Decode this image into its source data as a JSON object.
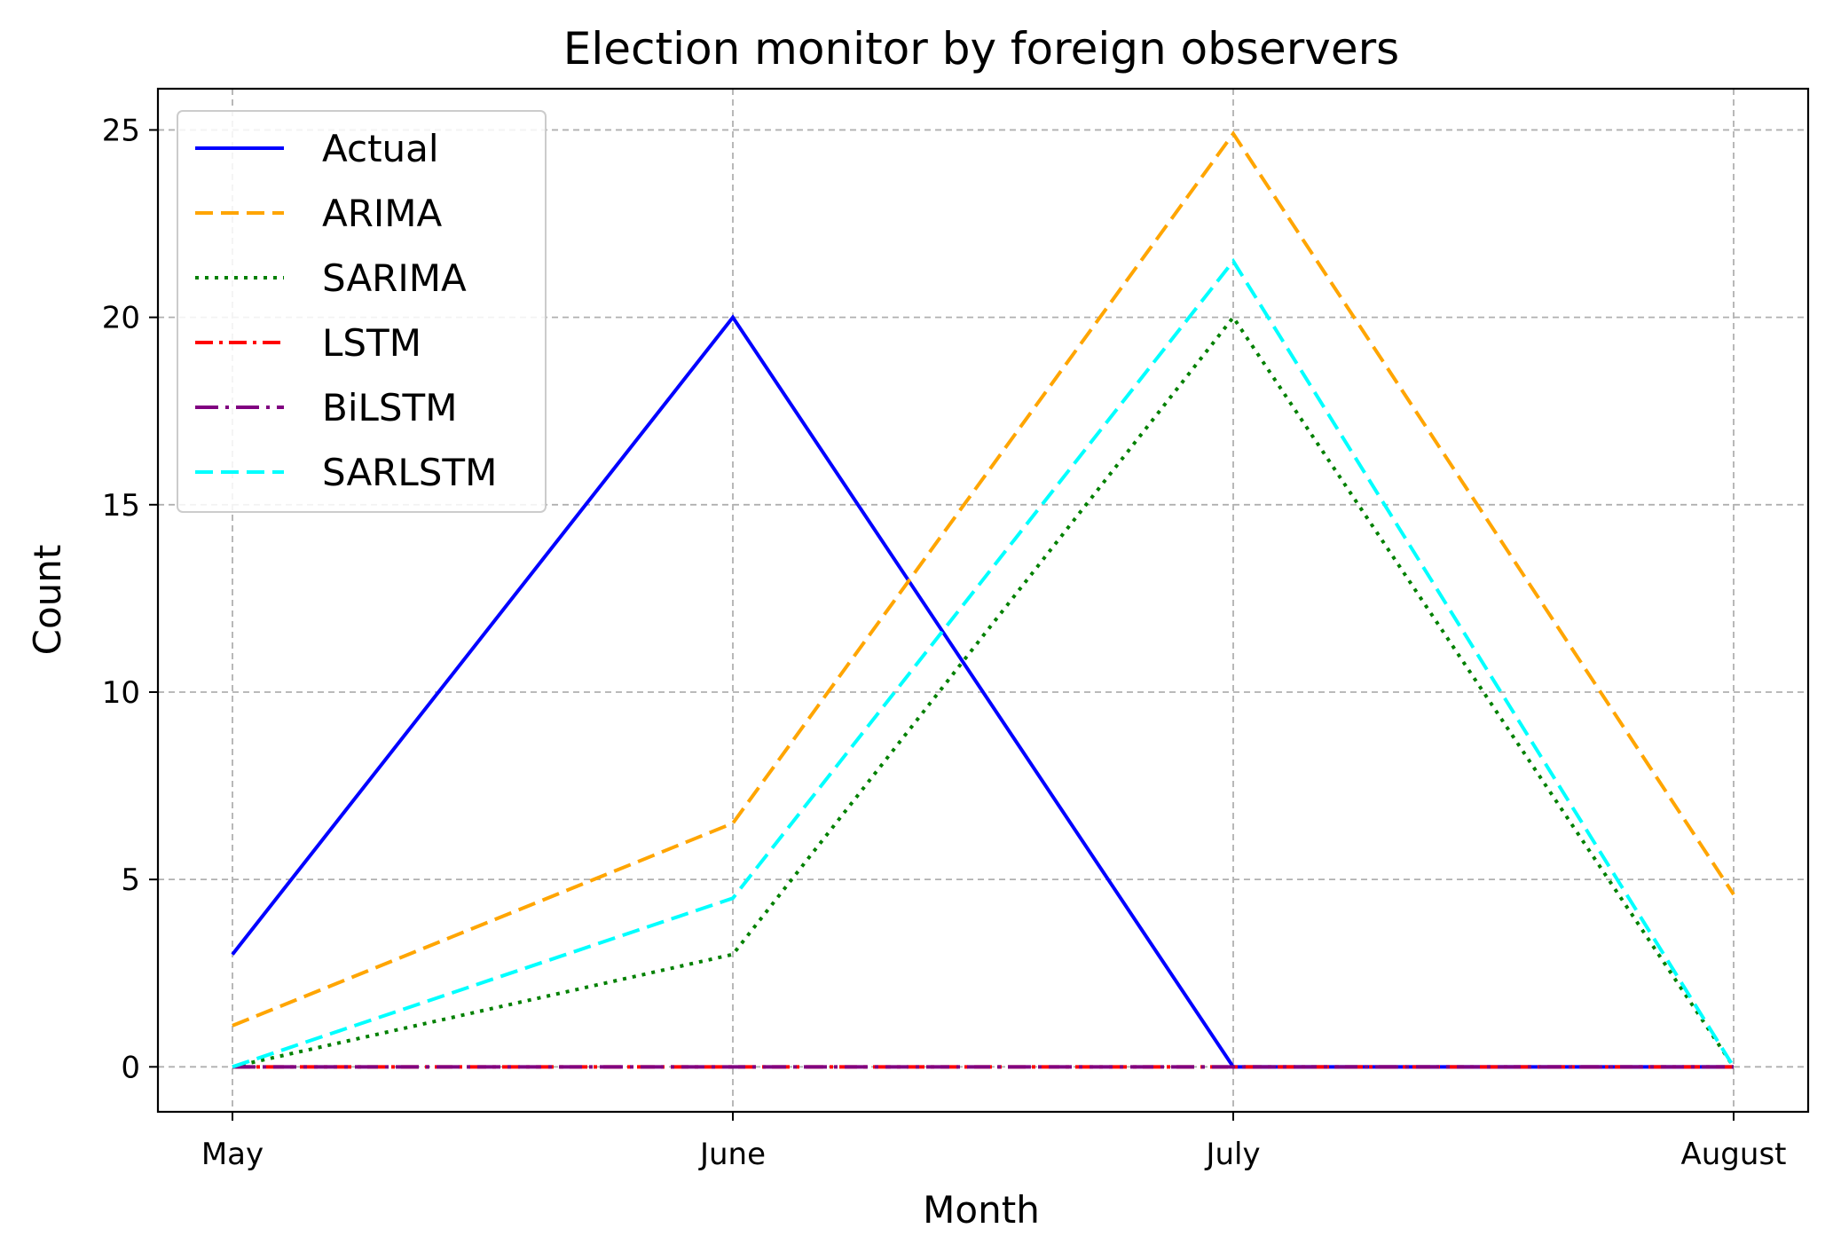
{
  "chart_data": {
    "type": "line",
    "title": "Election monitor by foreign observers",
    "xlabel": "Month",
    "ylabel": "Count",
    "categories": [
      "May",
      "June",
      "July",
      "August"
    ],
    "ylim": [
      -1.2,
      26.1
    ],
    "yticks": [
      0,
      5,
      10,
      15,
      20,
      25
    ],
    "grid": true,
    "legend_position": "upper-left",
    "series": [
      {
        "name": "Actual",
        "values": [
          3,
          20,
          0,
          0
        ],
        "color": "#0000ff",
        "style": "solid"
      },
      {
        "name": "ARIMA",
        "values": [
          1.1,
          6.5,
          24.9,
          4.6
        ],
        "color": "#ffa500",
        "style": "dashed"
      },
      {
        "name": "SARIMA",
        "values": [
          0,
          3,
          20,
          0
        ],
        "color": "#008000",
        "style": "dotted"
      },
      {
        "name": "LSTM",
        "values": [
          0,
          0,
          0,
          0
        ],
        "color": "#ff0000",
        "style": "dashdot"
      },
      {
        "name": "BiLSTM",
        "values": [
          0,
          0,
          0,
          0
        ],
        "color": "#800080",
        "style": "dashdot-long"
      },
      {
        "name": "SARLSTM",
        "values": [
          0,
          4.5,
          21.5,
          0
        ],
        "color": "#00ffff",
        "style": "dashed"
      }
    ]
  }
}
